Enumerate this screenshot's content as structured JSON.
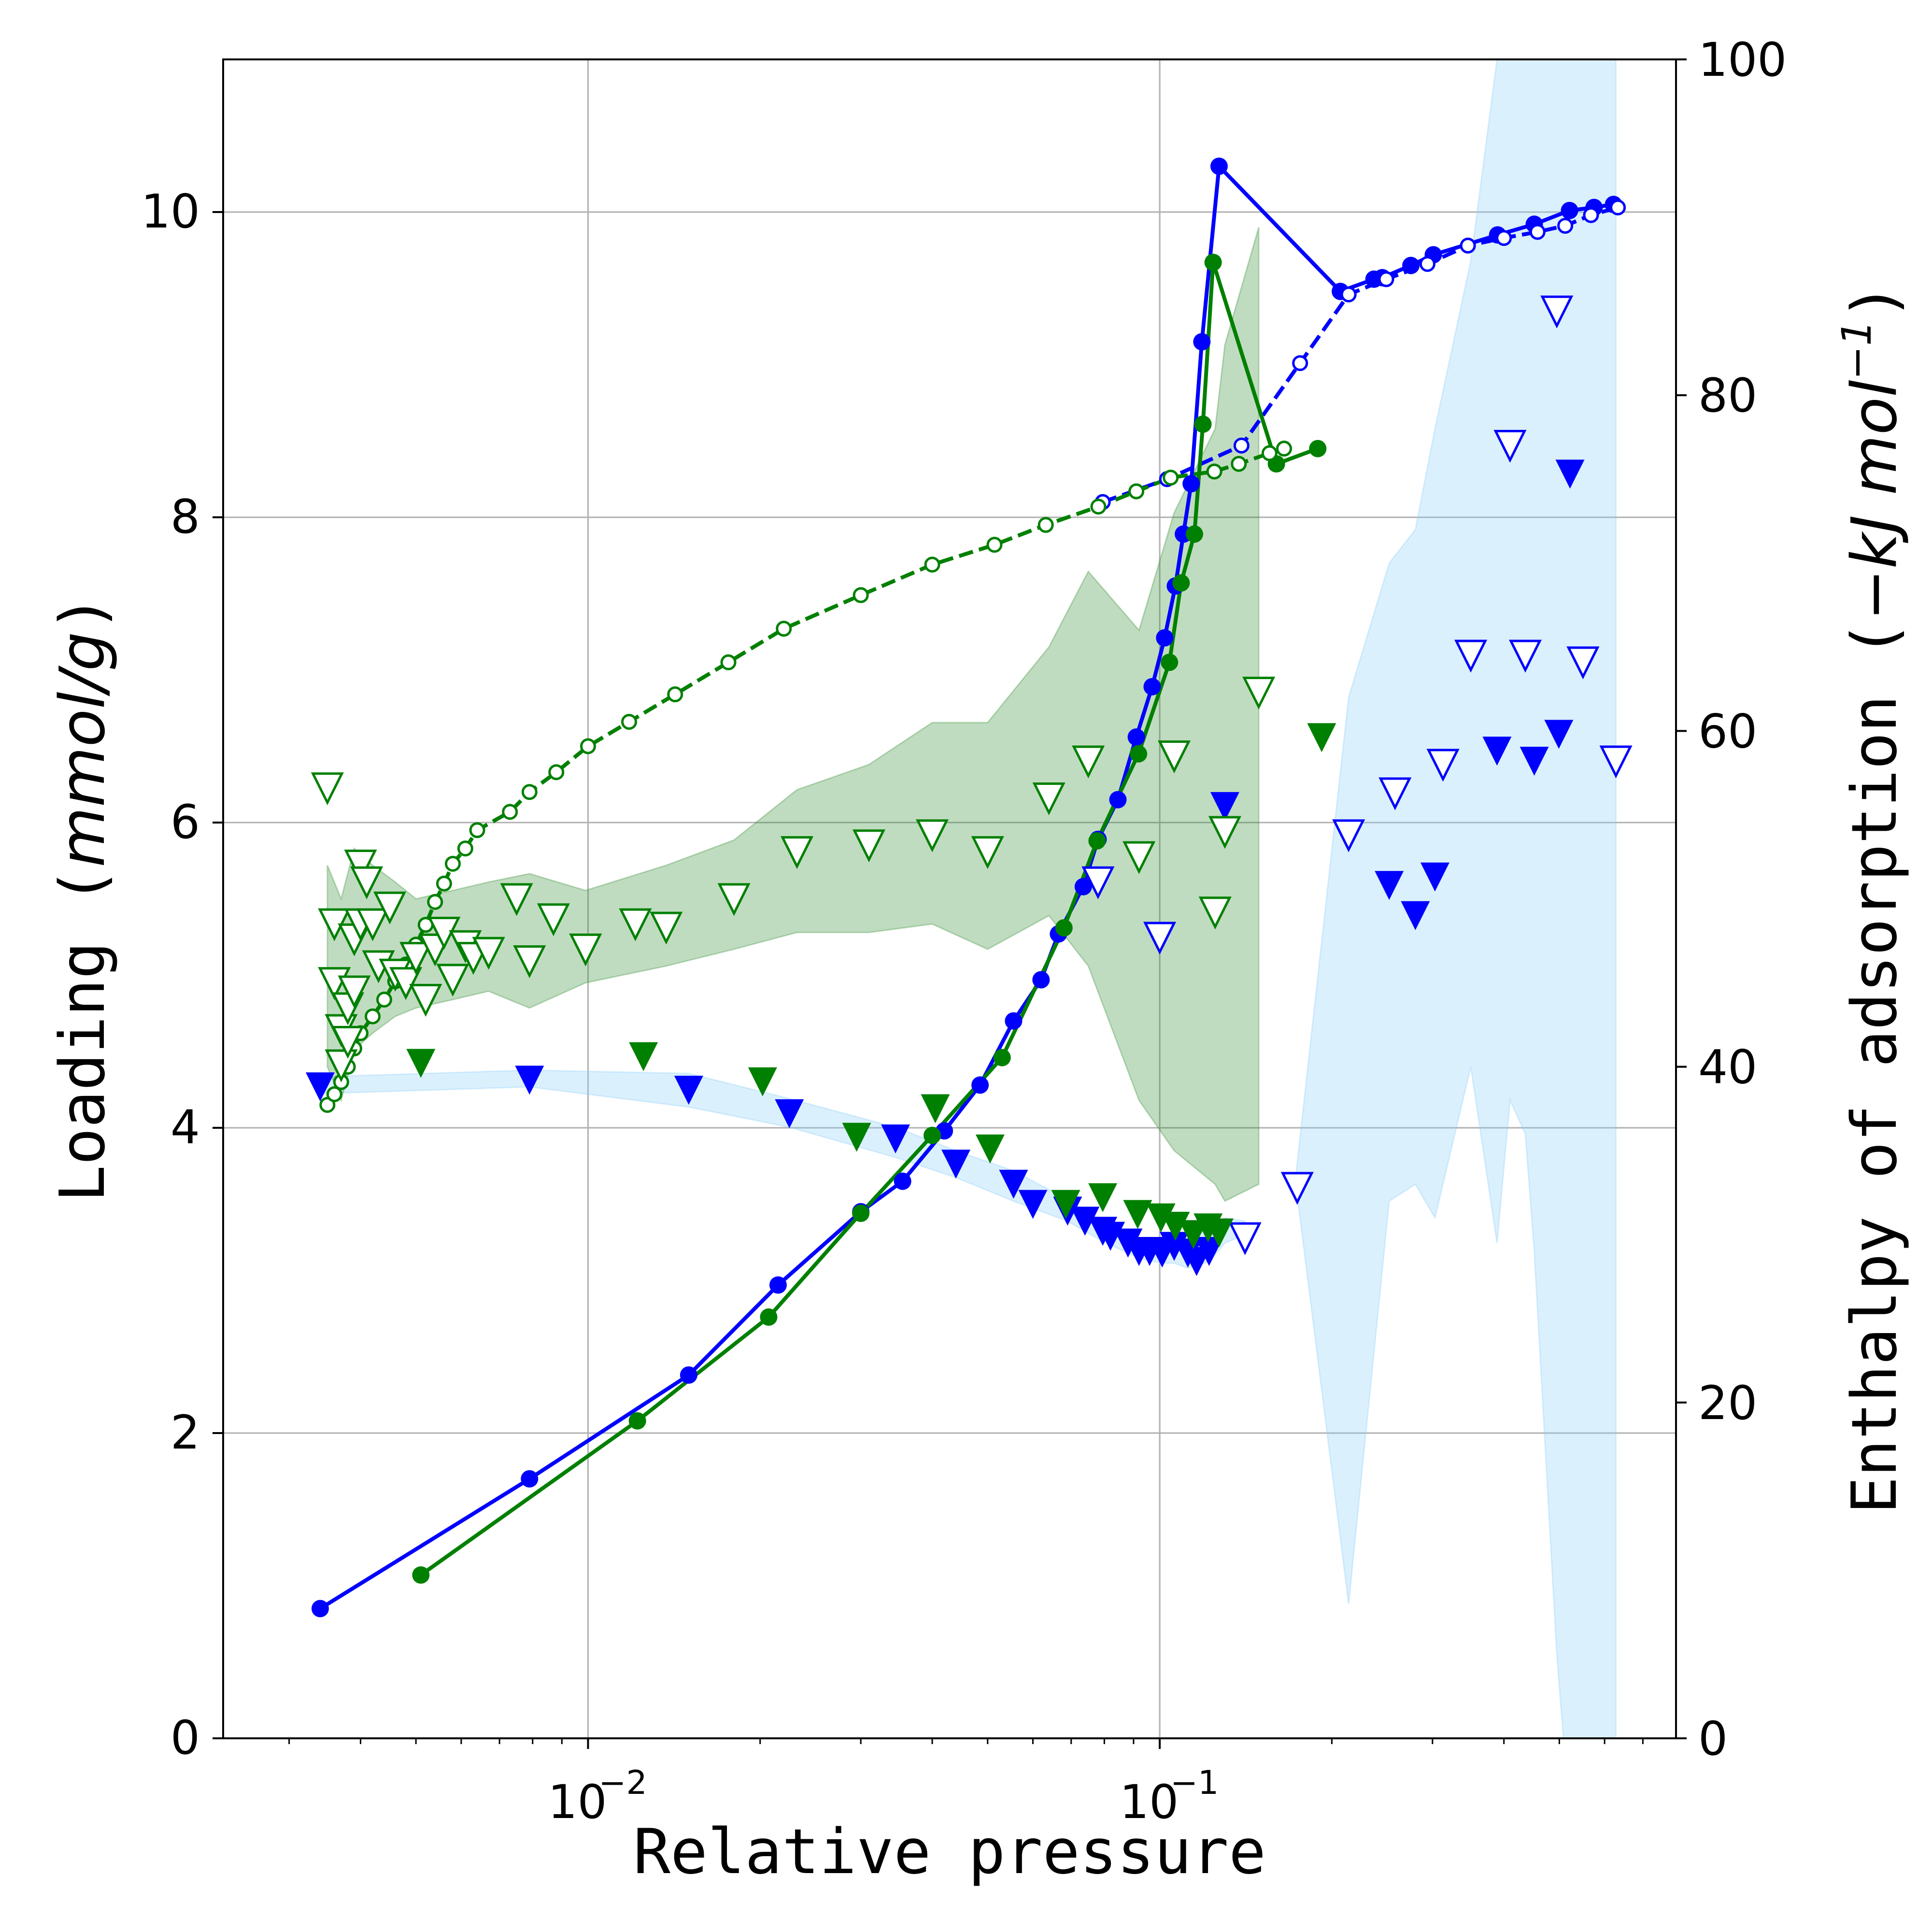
{
  "chart_data": {
    "type": "line",
    "xlabel": "Relative pressure",
    "ylabel": "Loading (mmol/g)",
    "ylabel_parts": [
      "Loading ",
      "(",
      "mmol/g",
      ")"
    ],
    "y2label": "Enthalpy of adsorption (−kJ mol⁻¹)",
    "y2label_parts": [
      "Enthalpy of adsorption ",
      "(",
      "−kJ mol",
      "−1",
      ")"
    ],
    "xscale": "log",
    "xlim": [
      0.0023,
      0.8
    ],
    "ylim": [
      0,
      11
    ],
    "y2lim": [
      0,
      100
    ],
    "x_ticks": [
      {
        "value": 0.01,
        "base": "10",
        "exp": "−2"
      },
      {
        "value": 0.1,
        "base": "10",
        "exp": "−1"
      }
    ],
    "y_ticks": [
      "0",
      "2",
      "4",
      "6",
      "8",
      "10"
    ],
    "y2_ticks": [
      "0",
      "20",
      "40",
      "60",
      "80",
      "100"
    ],
    "grid": true,
    "colors": {
      "blue": "#0000ff",
      "green": "#008000",
      "blue_band": "#87cefa",
      "green_band": "#2e8b2e"
    },
    "series": [
      {
        "color": "#0000ff",
        "branch": "adsorption",
        "axis": "left",
        "marker": "filled-circle",
        "line": "solid",
        "points": [
          [
            0.0034,
            0.85
          ],
          [
            0.0079,
            1.7
          ],
          [
            0.015,
            2.38
          ],
          [
            0.0215,
            2.97
          ],
          [
            0.03,
            3.45
          ],
          [
            0.0355,
            3.65
          ],
          [
            0.042,
            3.98
          ],
          [
            0.0485,
            4.28
          ],
          [
            0.0555,
            4.7
          ],
          [
            0.062,
            4.97
          ],
          [
            0.0665,
            5.27
          ],
          [
            0.0735,
            5.58
          ],
          [
            0.078,
            5.89
          ],
          [
            0.0845,
            6.15
          ],
          [
            0.091,
            6.56
          ],
          [
            0.097,
            6.89
          ],
          [
            0.102,
            7.21
          ],
          [
            0.1065,
            7.55
          ],
          [
            0.11,
            7.89
          ],
          [
            0.1135,
            8.22
          ],
          [
            0.1185,
            9.15
          ],
          [
            0.127,
            10.3
          ],
          [
            0.207,
            9.48
          ],
          [
            0.237,
            9.56
          ],
          [
            0.245,
            9.57
          ],
          [
            0.275,
            9.65
          ],
          [
            0.301,
            9.72
          ],
          [
            0.39,
            9.85
          ],
          [
            0.452,
            9.92
          ],
          [
            0.521,
            10.01
          ],
          [
            0.575,
            10.03
          ],
          [
            0.622,
            10.05
          ]
        ]
      },
      {
        "color": "#0000ff",
        "branch": "desorption",
        "axis": "left",
        "marker": "open-circle",
        "line": "dashed",
        "points": [
          [
            0.0795,
            8.1
          ],
          [
            0.103,
            8.25
          ],
          [
            0.139,
            8.47
          ],
          [
            0.176,
            9.01
          ],
          [
            0.214,
            9.46
          ],
          [
            0.249,
            9.56
          ],
          [
            0.294,
            9.66
          ],
          [
            0.346,
            9.78
          ],
          [
            0.4,
            9.83
          ],
          [
            0.458,
            9.87
          ],
          [
            0.512,
            9.91
          ],
          [
            0.568,
            9.98
          ],
          [
            0.633,
            10.03
          ]
        ]
      },
      {
        "color": "#008000",
        "branch": "adsorption",
        "axis": "left",
        "marker": "filled-circle",
        "line": "solid",
        "points": [
          [
            0.0051,
            1.07
          ],
          [
            0.0122,
            2.08
          ],
          [
            0.0207,
            2.76
          ],
          [
            0.03,
            3.44
          ],
          [
            0.04,
            3.95
          ],
          [
            0.053,
            4.46
          ],
          [
            0.068,
            5.31
          ],
          [
            0.0777,
            5.88
          ],
          [
            0.0918,
            6.45
          ],
          [
            0.104,
            7.05
          ],
          [
            0.109,
            7.57
          ],
          [
            0.115,
            7.89
          ],
          [
            0.119,
            8.61
          ],
          [
            0.124,
            9.67
          ],
          [
            0.16,
            8.35
          ],
          [
            0.189,
            8.45
          ]
        ]
      },
      {
        "color": "#008000",
        "branch": "desorption",
        "axis": "left",
        "marker": "open-circle",
        "line": "dashed",
        "points": [
          [
            0.0035,
            4.15
          ],
          [
            0.0036,
            4.22
          ],
          [
            0.0037,
            4.3
          ],
          [
            0.0038,
            4.4
          ],
          [
            0.0039,
            4.52
          ],
          [
            0.004,
            4.62
          ],
          [
            0.0042,
            4.73
          ],
          [
            0.0044,
            4.84
          ],
          [
            0.0046,
            4.96
          ],
          [
            0.0048,
            5.07
          ],
          [
            0.005,
            5.2
          ],
          [
            0.0052,
            5.33
          ],
          [
            0.0054,
            5.48
          ],
          [
            0.0056,
            5.6
          ],
          [
            0.0058,
            5.73
          ],
          [
            0.0061,
            5.83
          ],
          [
            0.0064,
            5.95
          ],
          [
            0.0073,
            6.07
          ],
          [
            0.0079,
            6.2
          ],
          [
            0.0088,
            6.33
          ],
          [
            0.01,
            6.5
          ],
          [
            0.0118,
            6.66
          ],
          [
            0.0142,
            6.84
          ],
          [
            0.0176,
            7.05
          ],
          [
            0.022,
            7.27
          ],
          [
            0.03,
            7.49
          ],
          [
            0.04,
            7.69
          ],
          [
            0.0514,
            7.82
          ],
          [
            0.0632,
            7.95
          ],
          [
            0.0781,
            8.07
          ],
          [
            0.091,
            8.17
          ],
          [
            0.1045,
            8.26
          ],
          [
            0.1246,
            8.3
          ],
          [
            0.1375,
            8.35
          ],
          [
            0.1556,
            8.42
          ],
          [
            0.165,
            8.45
          ]
        ]
      },
      {
        "color": "#0000ff",
        "branch": "adsorption",
        "axis": "right",
        "marker": "filled-triangle-down",
        "points": [
          [
            0.0034,
            38.8
          ],
          [
            0.0079,
            39.2
          ],
          [
            0.015,
            38.6
          ],
          [
            0.0225,
            37.2
          ],
          [
            0.0345,
            35.7
          ],
          [
            0.044,
            34.2
          ],
          [
            0.0555,
            33.0
          ],
          [
            0.06,
            31.8
          ],
          [
            0.069,
            31.4
          ],
          [
            0.074,
            30.8
          ],
          [
            0.0795,
            30.2
          ],
          [
            0.082,
            29.9
          ],
          [
            0.088,
            29.5
          ],
          [
            0.092,
            29.0
          ],
          [
            0.096,
            29.0
          ],
          [
            0.101,
            28.9
          ],
          [
            0.106,
            29.3
          ],
          [
            0.112,
            28.9
          ],
          [
            0.116,
            28.4
          ],
          [
            0.122,
            29.0
          ],
          [
            0.13,
            55.5
          ],
          [
            0.252,
            50.8
          ],
          [
            0.28,
            49.0
          ],
          [
            0.303,
            51.3
          ],
          [
            0.389,
            58.8
          ],
          [
            0.452,
            58.2
          ],
          [
            0.499,
            59.8
          ],
          [
            0.522,
            75.3
          ]
        ]
      },
      {
        "color": "#0000ff",
        "branch": "desorption",
        "axis": "right",
        "marker": "open-triangle-down",
        "points": [
          [
            0.078,
            51.0
          ],
          [
            0.1,
            47.7
          ],
          [
            0.141,
            29.8
          ],
          [
            0.174,
            32.8
          ],
          [
            0.214,
            53.8
          ],
          [
            0.258,
            56.3
          ],
          [
            0.313,
            58.0
          ],
          [
            0.35,
            64.5
          ],
          [
            0.41,
            77.0
          ],
          [
            0.436,
            64.5
          ],
          [
            0.495,
            85.0
          ],
          [
            0.55,
            64.1
          ],
          [
            0.628,
            58.2
          ]
        ]
      },
      {
        "color": "#008000",
        "branch": "adsorption",
        "axis": "right",
        "marker": "filled-triangle-down",
        "points": [
          [
            0.0051,
            40.2
          ],
          [
            0.0125,
            40.6
          ],
          [
            0.0202,
            39.1
          ],
          [
            0.0295,
            35.8
          ],
          [
            0.0405,
            37.5
          ],
          [
            0.0505,
            35.1
          ],
          [
            0.0685,
            31.8
          ],
          [
            0.0795,
            32.2
          ],
          [
            0.0915,
            31.2
          ],
          [
            0.1005,
            31.0
          ],
          [
            0.1065,
            30.5
          ],
          [
            0.1145,
            30.0
          ],
          [
            0.1215,
            30.4
          ],
          [
            0.127,
            30.1
          ],
          [
            0.192,
            59.6
          ]
        ]
      },
      {
        "color": "#008000",
        "branch": "desorption",
        "axis": "right",
        "marker": "open-triangle-down",
        "points": [
          [
            0.0035,
            56.6
          ],
          [
            0.0036,
            48.5
          ],
          [
            0.0036,
            45.0
          ],
          [
            0.0037,
            42.2
          ],
          [
            0.0037,
            40.1
          ],
          [
            0.0038,
            41.5
          ],
          [
            0.0038,
            43.5
          ],
          [
            0.0039,
            44.5
          ],
          [
            0.0039,
            47.6
          ],
          [
            0.004,
            48.5
          ],
          [
            0.004,
            52.0
          ],
          [
            0.0041,
            51.0
          ],
          [
            0.0042,
            48.5
          ],
          [
            0.0043,
            46.0
          ],
          [
            0.0045,
            49.5
          ],
          [
            0.0046,
            45.5
          ],
          [
            0.0048,
            45.0
          ],
          [
            0.005,
            46.5
          ],
          [
            0.0052,
            44.0
          ],
          [
            0.0054,
            47.0
          ],
          [
            0.0056,
            48.0
          ],
          [
            0.0058,
            45.2
          ],
          [
            0.0061,
            47.2
          ],
          [
            0.0063,
            46.5
          ],
          [
            0.0067,
            46.8
          ],
          [
            0.0075,
            50.0
          ],
          [
            0.0079,
            46.3
          ],
          [
            0.0087,
            48.8
          ],
          [
            0.0099,
            47.0
          ],
          [
            0.0121,
            48.5
          ],
          [
            0.0137,
            48.3
          ],
          [
            0.018,
            50.0
          ],
          [
            0.0232,
            52.8
          ],
          [
            0.031,
            53.2
          ],
          [
            0.04,
            53.8
          ],
          [
            0.05,
            52.8
          ],
          [
            0.064,
            56.0
          ],
          [
            0.075,
            58.2
          ],
          [
            0.092,
            52.5
          ],
          [
            0.106,
            58.5
          ],
          [
            0.125,
            49.2
          ],
          [
            0.13,
            54.0
          ],
          [
            0.149,
            62.3
          ]
        ]
      }
    ],
    "bands": [
      {
        "color": "#87cefa",
        "axis": "right",
        "x": [
          0.0034,
          0.0079,
          0.015,
          0.0225,
          0.0345,
          0.044,
          0.0555,
          0.069,
          0.0795,
          0.092,
          0.101,
          0.106,
          0.112,
          0.122,
          0.13,
          0.141
        ],
        "low": [
          38.4,
          38.8,
          37.6,
          36.4,
          34.6,
          33.4,
          32.0,
          30.8,
          29.6,
          28.6,
          28.3,
          28.3,
          28.0,
          28.4,
          29.5,
          30.0
        ],
        "high": [
          39.4,
          39.8,
          39.6,
          38.1,
          36.4,
          35.0,
          33.8,
          32.1,
          30.8,
          29.7,
          29.6,
          30.0,
          29.9,
          30.4,
          31.0,
          30.8
        ]
      },
      {
        "color": "#87cefa",
        "axis": "right",
        "x": [
          0.173,
          0.214,
          0.252,
          0.28,
          0.303,
          0.35,
          0.389,
          0.41,
          0.436,
          0.452,
          0.495,
          0.522,
          0.55,
          0.628
        ],
        "low": [
          33.0,
          8.0,
          32.0,
          33.0,
          31.0,
          40.0,
          29.5,
          38.0,
          36.0,
          29.0,
          5.0,
          -5.0,
          -5.0,
          -5.0
        ],
        "high": [
          33.5,
          62.0,
          70.0,
          72.0,
          78.0,
          88.0,
          100.0,
          100.0,
          100.0,
          100.0,
          100.0,
          100.0,
          100.0,
          100.0
        ]
      },
      {
        "color": "#2e8b2e",
        "axis": "right",
        "x": [
          0.0035,
          0.0037,
          0.0039,
          0.0042,
          0.0046,
          0.005,
          0.0058,
          0.0067,
          0.0079,
          0.0099,
          0.0137,
          0.018,
          0.0232,
          0.031,
          0.04,
          0.05,
          0.064,
          0.075,
          0.092,
          0.106,
          0.125,
          0.13,
          0.149
        ],
        "low": [
          40.0,
          38.0,
          41.0,
          42.0,
          43.0,
          43.5,
          44.0,
          44.5,
          43.5,
          45.0,
          46.0,
          47.0,
          48.0,
          48.0,
          48.5,
          47.0,
          49.0,
          46.0,
          38.0,
          35.0,
          33.0,
          32.0,
          33.0
        ],
        "high": [
          52.0,
          50.0,
          53.0,
          52.0,
          51.0,
          50.0,
          50.5,
          51.0,
          51.5,
          50.5,
          52.0,
          53.5,
          56.5,
          58.0,
          60.5,
          60.5,
          65.0,
          69.5,
          66.0,
          73.0,
          78.0,
          83.0,
          90.0
        ]
      }
    ]
  }
}
